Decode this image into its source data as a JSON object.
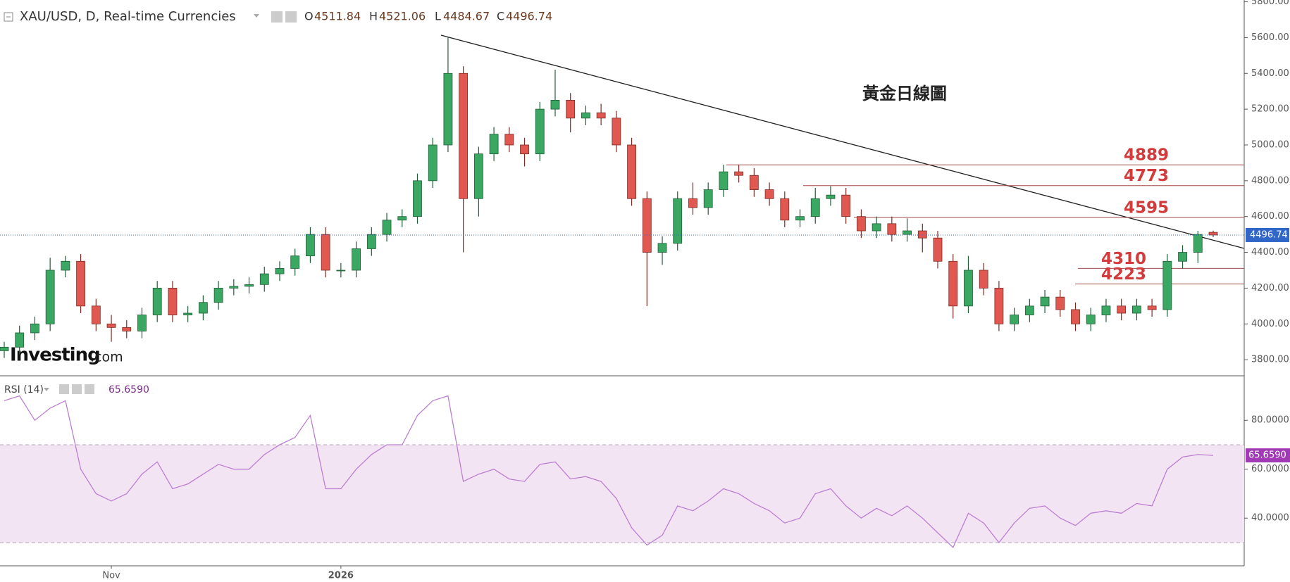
{
  "chart_data": {
    "type": "candlestick",
    "title": "XAU/USD, D, Real-time Currencies",
    "ohlc_labels": [
      "O",
      "H",
      "L",
      "C"
    ],
    "annotation": "黃金日線圖",
    "logo": [
      "Investing",
      ".com"
    ],
    "categories": [
      null,
      null,
      null,
      null,
      null,
      null,
      null,
      "Nov",
      null,
      null,
      null,
      null,
      null,
      null,
      null,
      null,
      null,
      null,
      null,
      null,
      null,
      null,
      "2026",
      null,
      null,
      null,
      null,
      null,
      null,
      null,
      null,
      null,
      null,
      null,
      null,
      null,
      null,
      null,
      null,
      null,
      null,
      null,
      null,
      null,
      null,
      null,
      null,
      null,
      null,
      null,
      null,
      null,
      null,
      null,
      null,
      null,
      null,
      null,
      null,
      null,
      null,
      null,
      null,
      null,
      null,
      null,
      null,
      null,
      null,
      null,
      null,
      null,
      null,
      null,
      null,
      null,
      null,
      null,
      null,
      null
    ],
    "open": [
      3850,
      3870,
      3950,
      4000,
      4300,
      4350,
      4100,
      4000,
      3980,
      3960,
      4050,
      4200,
      4050,
      4060,
      4120,
      4200,
      4210,
      4220,
      4280,
      4310,
      4380,
      4500,
      4300,
      4300,
      4420,
      4500,
      4580,
      4600,
      4800,
      5000,
      5400,
      4700,
      4950,
      5060,
      5000,
      4950,
      5200,
      5250,
      5150,
      5180,
      5150,
      5000,
      4700,
      4400,
      4450,
      4700,
      4650,
      4750,
      4850,
      4830,
      4750,
      4700,
      4580,
      4600,
      4700,
      4720,
      4600,
      4520,
      4560,
      4500,
      4520,
      4480,
      4350,
      4100,
      4300,
      4200,
      4000,
      4050,
      4100,
      4150,
      4080,
      4000,
      4050,
      4100,
      4060,
      4100,
      4080,
      4350,
      4400,
      4511.84
    ],
    "high": [
      3900,
      3990,
      4040,
      4370,
      4380,
      4390,
      4140,
      4050,
      4020,
      4090,
      4240,
      4240,
      4100,
      4160,
      4240,
      4250,
      4260,
      4320,
      4350,
      4420,
      4540,
      4540,
      4340,
      4460,
      4540,
      4620,
      4640,
      4840,
      5040,
      5600,
      5440,
      4990,
      5100,
      5100,
      5040,
      5240,
      5420,
      5290,
      5220,
      5230,
      5190,
      5040,
      4740,
      4490,
      4740,
      4790,
      4790,
      4890,
      4890,
      4870,
      4790,
      4740,
      4640,
      4760,
      4770,
      4760,
      4640,
      4600,
      4600,
      4590,
      4560,
      4520,
      4390,
      4380,
      4340,
      4240,
      4090,
      4140,
      4190,
      4190,
      4120,
      4090,
      4140,
      4140,
      4140,
      4140,
      4390,
      4440,
      4520,
      4521.06
    ],
    "low": [
      3810,
      3830,
      3910,
      3960,
      4260,
      4060,
      3960,
      3900,
      3920,
      3920,
      4010,
      4010,
      4010,
      4020,
      4080,
      4160,
      4170,
      4180,
      4240,
      4270,
      4340,
      4260,
      4260,
      4260,
      4380,
      4460,
      4540,
      4560,
      4760,
      4960,
      4400,
      4600,
      4910,
      4960,
      4880,
      4910,
      5160,
      5070,
      5110,
      5110,
      4960,
      4660,
      4100,
      4330,
      4410,
      4610,
      4610,
      4710,
      4790,
      4710,
      4660,
      4540,
      4540,
      4560,
      4660,
      4560,
      4480,
      4480,
      4460,
      4460,
      4400,
      4310,
      4030,
      4060,
      4160,
      3960,
      3960,
      4010,
      4060,
      4040,
      3960,
      3960,
      4010,
      4020,
      4020,
      4040,
      4040,
      4310,
      4340,
      4484.67
    ],
    "close": [
      3870,
      3950,
      4000,
      4300,
      4350,
      4100,
      4000,
      3980,
      3960,
      4050,
      4200,
      4050,
      4060,
      4120,
      4200,
      4210,
      4220,
      4280,
      4310,
      4380,
      4500,
      4300,
      4300,
      4420,
      4500,
      4580,
      4600,
      4800,
      5000,
      5400,
      4700,
      4950,
      5060,
      5000,
      4950,
      5200,
      5250,
      5150,
      5180,
      5150,
      5000,
      4700,
      4400,
      4450,
      4700,
      4650,
      4750,
      4850,
      4830,
      4750,
      4700,
      4580,
      4600,
      4700,
      4720,
      4600,
      4520,
      4560,
      4500,
      4520,
      4480,
      4350,
      4100,
      4300,
      4200,
      4000,
      4050,
      4100,
      4150,
      4080,
      4000,
      4050,
      4100,
      4060,
      4100,
      4080,
      4350,
      4400,
      4500,
      4496.74
    ],
    "up_color": "#3aa763",
    "down_color": "#e0584f",
    "price_line_color": "#2f66c8",
    "ylim": [
      3710,
      5810
    ],
    "yticks": [
      {
        "value": 3800,
        "label": "3800.00"
      },
      {
        "value": 4000,
        "label": "4000.00"
      },
      {
        "value": 4200,
        "label": "4200.00"
      },
      {
        "value": 4400,
        "label": "4400.00"
      },
      {
        "value": 4600,
        "label": "4600.00"
      },
      {
        "value": 4800,
        "label": "4800.00"
      },
      {
        "value": 5000,
        "label": "5000.00"
      },
      {
        "value": 5200,
        "label": "5200.00"
      },
      {
        "value": 5400,
        "label": "5400.00"
      },
      {
        "value": 5600,
        "label": "5600.00"
      },
      {
        "value": 5800,
        "label": "5800.00"
      }
    ],
    "levels": [
      4889,
      4773,
      4595,
      4310,
      4223
    ],
    "level_color": "#d23a3c",
    "indicator": {
      "type": "line",
      "title": "RSI (14)",
      "values": [
        88,
        90,
        80,
        85,
        88,
        60,
        50,
        47,
        50,
        58,
        63,
        52,
        54,
        58,
        62,
        60,
        60,
        66,
        70,
        73,
        82,
        52,
        52,
        60,
        66,
        70,
        70,
        82,
        88,
        90,
        55,
        58,
        60,
        56,
        55,
        62,
        63,
        56,
        57,
        55,
        48,
        36,
        29,
        33,
        45,
        43,
        47,
        52,
        50,
        46,
        43,
        38,
        40,
        50,
        52,
        45,
        40,
        44,
        41,
        45,
        40,
        34,
        28,
        42,
        38,
        30,
        38,
        44,
        45,
        40,
        37,
        42,
        43,
        42,
        46,
        45,
        60,
        65,
        66,
        65.659
      ],
      "current": {
        "value": 65.659,
        "label": "65.6590"
      },
      "ylim": [
        20.5,
        98.2
      ],
      "yticks": [
        {
          "value": 40,
          "label": "40.0000"
        },
        {
          "value": 60,
          "label": "60.0000"
        },
        {
          "value": 80,
          "label": "80.0000"
        }
      ],
      "band": [
        30,
        70
      ],
      "color": "#bb7fd2",
      "band_color": "#f3e4f4"
    }
  }
}
